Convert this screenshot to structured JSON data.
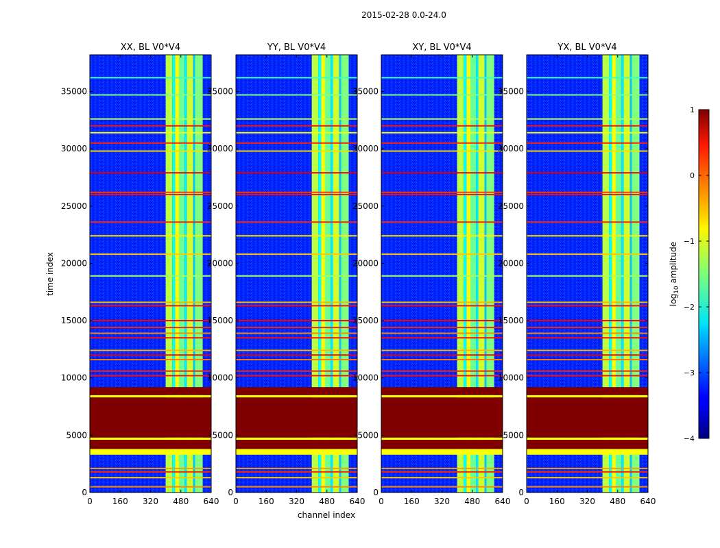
{
  "chart_data": {
    "type": "heatmap",
    "suptitle": "2015-02-28 0.0-24.0",
    "colorscale": "jet",
    "panels": [
      {
        "title": "XX, BL V0*V4"
      },
      {
        "title": "YY, BL V0*V4"
      },
      {
        "title": "XY, BL V0*V4"
      },
      {
        "title": "YX, BL V0*V4"
      }
    ],
    "xlabel": "channel index",
    "ylabel": "time index",
    "xlim": [
      0,
      640
    ],
    "ylim": [
      0,
      38200
    ],
    "xticks": [
      "0",
      "160",
      "320",
      "480",
      "640"
    ],
    "yticks": [
      "0",
      "5000",
      "10000",
      "15000",
      "20000",
      "25000",
      "30000",
      "35000"
    ],
    "yticks_values": [
      0,
      5000,
      10000,
      15000,
      20000,
      25000,
      30000,
      35000
    ],
    "colorbar": {
      "label": "log10 amplitude",
      "range": [
        -4,
        1
      ],
      "ticks": [
        "1",
        "0",
        "−1",
        "−2",
        "−3",
        "−4"
      ],
      "tick_values": [
        1,
        0,
        -1,
        -2,
        -3,
        -4
      ]
    },
    "background_level": -3.2,
    "emission_bands": [
      {
        "from": 400,
        "to": 435,
        "level": -1.2
      },
      {
        "from": 435,
        "to": 450,
        "level": -2.1
      },
      {
        "from": 450,
        "to": 470,
        "level": -0.9
      },
      {
        "from": 470,
        "to": 500,
        "level": -1.6
      },
      {
        "from": 500,
        "to": 512,
        "level": -2.2
      },
      {
        "from": 512,
        "to": 545,
        "level": -1.1
      },
      {
        "from": 545,
        "to": 555,
        "level": -2.4
      },
      {
        "from": 555,
        "to": 595,
        "level": -1.5
      }
    ],
    "emission_time_range": [
      0,
      38200
    ],
    "saturated_blocks": [
      {
        "from": 3300,
        "to": 3800,
        "level": -0.9
      },
      {
        "from": 3800,
        "to": 4600,
        "level": 1.0
      },
      {
        "from": 4600,
        "to": 4800,
        "level": -0.9
      },
      {
        "from": 4800,
        "to": 8300,
        "level": 1.0
      },
      {
        "from": 8300,
        "to": 8500,
        "level": -0.9
      },
      {
        "from": 8500,
        "to": 9200,
        "level": 1.0
      }
    ],
    "horizontal_lines": [
      {
        "t": 500,
        "level": -0.3
      },
      {
        "t": 1300,
        "level": -0.6
      },
      {
        "t": 1800,
        "level": 0.2
      },
      {
        "t": 2100,
        "level": -0.4
      },
      {
        "t": 10200,
        "level": 0.3
      },
      {
        "t": 10600,
        "level": 0.2
      },
      {
        "t": 11600,
        "level": -0.2
      },
      {
        "t": 12000,
        "level": 0.4
      },
      {
        "t": 12400,
        "level": -0.5
      },
      {
        "t": 13500,
        "level": 0.3
      },
      {
        "t": 13900,
        "level": -0.3
      },
      {
        "t": 14400,
        "level": 0.2
      },
      {
        "t": 15000,
        "level": 0.4
      },
      {
        "t": 16300,
        "level": 0.3
      },
      {
        "t": 16600,
        "level": -0.5
      },
      {
        "t": 18900,
        "level": -1.3
      },
      {
        "t": 20800,
        "level": -0.6
      },
      {
        "t": 22400,
        "level": -0.8
      },
      {
        "t": 23600,
        "level": 0.2
      },
      {
        "t": 26000,
        "level": 0.3
      },
      {
        "t": 26200,
        "level": 0.1
      },
      {
        "t": 27900,
        "level": 0.5
      },
      {
        "t": 29800,
        "level": -0.7
      },
      {
        "t": 30500,
        "level": 0.2
      },
      {
        "t": 31400,
        "level": -0.9
      },
      {
        "t": 32000,
        "level": 0.3
      },
      {
        "t": 32600,
        "level": -1.2
      },
      {
        "t": 34700,
        "level": -1.5
      },
      {
        "t": 36200,
        "level": -1.8
      }
    ]
  }
}
